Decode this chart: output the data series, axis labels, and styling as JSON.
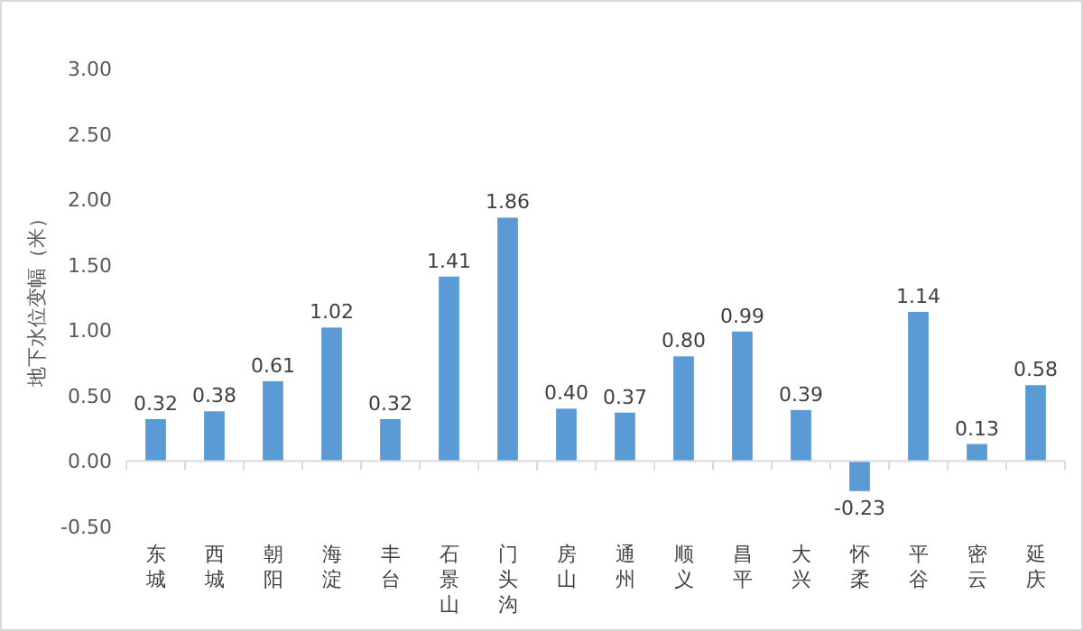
{
  "chart_data": {
    "type": "bar",
    "ylabel": "地下水位变幅（米）",
    "categories": [
      "东城",
      "西城",
      "朝阳",
      "海淀",
      "丰台",
      "石景山",
      "门头沟",
      "房山",
      "通州",
      "顺义",
      "昌平",
      "大兴",
      "怀柔",
      "平谷",
      "密云",
      "延庆"
    ],
    "values": [
      0.32,
      0.38,
      0.61,
      1.02,
      0.32,
      1.41,
      1.86,
      0.4,
      0.37,
      0.8,
      0.99,
      0.39,
      -0.23,
      1.14,
      0.13,
      0.58
    ],
    "value_labels": [
      "0.32",
      "0.38",
      "0.61",
      "1.02",
      "0.32",
      "1.41",
      "1.86",
      "0.40",
      "0.37",
      "0.80",
      "0.99",
      "0.39",
      "-0.23",
      "1.14",
      "0.13",
      "0.58"
    ],
    "color": "#5b9bd5",
    "ylim": [
      -0.5,
      3
    ],
    "yticks": [
      {
        "value": -0.5,
        "label": "-0.50"
      },
      {
        "value": 0,
        "label": "0.00"
      },
      {
        "value": 0.5,
        "label": "0.50"
      },
      {
        "value": 1,
        "label": "1.00"
      },
      {
        "value": 1.5,
        "label": "1.50"
      },
      {
        "value": 2,
        "label": "2.00"
      },
      {
        "value": 2.5,
        "label": "2.50"
      },
      {
        "value": 3,
        "label": "3.00"
      }
    ]
  }
}
